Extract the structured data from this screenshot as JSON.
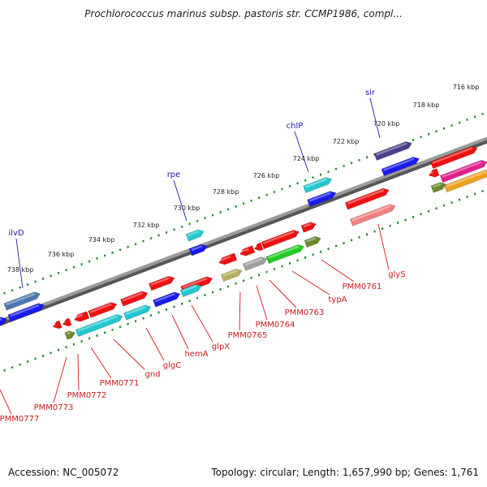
{
  "header": {
    "title": "Prochlorococcus marinus subsp. pastoris str. CCMP1986, compl..."
  },
  "colors": {
    "background": "#ffffff",
    "backbone": "#8a8a8a",
    "kbp_dots": "#2a8a2a",
    "top_gene_label": "#1a1aa8",
    "bottom_gene_label": "#cc1a1a",
    "red_gene": "#ee1111",
    "cyan_gene": "#22c8d0",
    "blue_gene": "#1a1aee"
  },
  "kbp_labels": [
    "716 kbp",
    "718 kbp",
    "720 kbp",
    "722 kbp",
    "724 kbp",
    "726 kbp",
    "728 kbp",
    "730 kbp",
    "732 kbp",
    "734 kbp",
    "736 kbp",
    "738 kbp"
  ],
  "top_genes": [
    "sir",
    "chlP",
    "rpe",
    "ilvD"
  ],
  "bottom_genes": [
    "glyS",
    "PMM0761",
    "typA",
    "PMM0763",
    "PMM0764",
    "PMM0765",
    "glpX",
    "hemA",
    "glgC",
    "gnd",
    "PMM0771",
    "PMM0772",
    "PMM0773",
    "PMM0777"
  ],
  "footer": {
    "accession": "Accession: NC_005072",
    "topology": "Topology: circular; Length: 1,657,990 bp; Genes: 1,761"
  }
}
